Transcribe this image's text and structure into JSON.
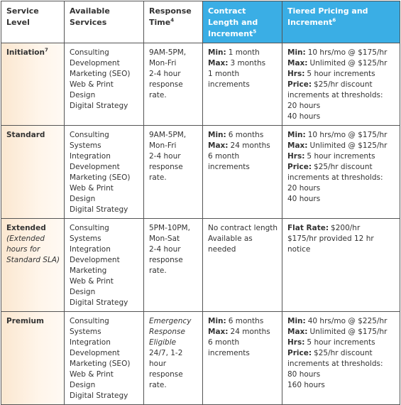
{
  "table": {
    "headers": [
      {
        "text": "Service Level"
      },
      {
        "text": "Available Services"
      },
      {
        "text": "Response Time",
        "sup": "4"
      },
      {
        "text": "Contract Length and Increment",
        "sup": "5",
        "highlight": true
      },
      {
        "text": "Tiered Pricing and Increment",
        "sup": "6",
        "highlight": true
      }
    ],
    "rows": [
      {
        "level": {
          "text": "Initiation",
          "sup": "7"
        },
        "services": [
          "Consulting",
          "Development",
          "Marketing (SEO)",
          "Web & Print Design",
          "Digital Strategy"
        ],
        "response": [
          {
            "text": "9AM-5PM, Mon-Fri"
          },
          {
            "text": "2-4 hour response rate."
          }
        ],
        "contract": [
          {
            "label": "Min:",
            "text": "1 month"
          },
          {
            "label": "Max:",
            "text": "3 months"
          },
          {
            "text": "1 month increments"
          }
        ],
        "pricing": [
          {
            "label": "Min:",
            "text": "10 hrs/mo @ $175/hr"
          },
          {
            "label": "Max:",
            "text": "Unlimited @ $125/hr"
          },
          {
            "label": "Hrs:",
            "text": "5 hour increments"
          },
          {
            "label": "Price:",
            "text": "$25/hr discount increments at thresholds:"
          },
          {
            "text": "20 hours"
          },
          {
            "text": "40 hours"
          }
        ]
      },
      {
        "level": {
          "text": "Standard"
        },
        "services": [
          "Consulting",
          "Systems Integration",
          "Development",
          "Marketing (SEO)",
          "Web & Print Design",
          "Digital Strategy"
        ],
        "response": [
          {
            "text": "9AM-5PM, Mon-Fri"
          },
          {
            "text": "2-4 hour response rate."
          }
        ],
        "contract": [
          {
            "label": "Min:",
            "text": "6 months"
          },
          {
            "label": "Max:",
            "text": "24 months"
          },
          {
            "text": "6 month increments"
          }
        ],
        "pricing": [
          {
            "label": "Min:",
            "text": "10 hrs/mo @ $175/hr"
          },
          {
            "label": "Max:",
            "text": "Unlimited @ $125/hr"
          },
          {
            "label": "Hrs:",
            "text": "5 hour increments"
          },
          {
            "label": "Price:",
            "text": "$25/hr discount increments at thresholds:"
          },
          {
            "text": "20 hours"
          },
          {
            "text": "40 hours"
          }
        ]
      },
      {
        "level": {
          "text": "Extended",
          "note": "(Extended hours for Standard SLA)"
        },
        "services": [
          "Consulting",
          "Systems Integration",
          "Development",
          "Marketing",
          "Web & Print Design",
          "Digital Strategy"
        ],
        "response": [
          {
            "text": "5PM-10PM, Mon-Sat"
          },
          {
            "text": "2-4 hour response rate."
          }
        ],
        "contract": [
          {
            "text": "No contract length"
          },
          {
            "text": "Available as needed"
          }
        ],
        "pricing": [
          {
            "label": "Flat Rate:",
            "text": "$200/hr"
          },
          {
            "text": "$175/hr provided 12 hr notice"
          }
        ]
      },
      {
        "level": {
          "text": "Premium"
        },
        "services": [
          "Consulting",
          "Systems Integration",
          "Development",
          "Marketing (SEO)",
          "Web & Print Design",
          "Digital Strategy"
        ],
        "response": [
          {
            "text": "Emergency Response Eligible",
            "italic": true
          },
          {
            "text": "24/7, 1-2 hour response rate."
          }
        ],
        "contract": [
          {
            "label": "Min:",
            "text": "6 months"
          },
          {
            "label": "Max:",
            "text": "24 months"
          },
          {
            "text": "6 month increments"
          }
        ],
        "pricing": [
          {
            "label": "Min:",
            "text": "40 hrs/mo @ $225/hr"
          },
          {
            "label": "Max:",
            "text": "Unlimited @ $175/hr"
          },
          {
            "label": "Hrs:",
            "text": "5 hour increments"
          },
          {
            "label": "Price:",
            "text": "$25/hr discount increments at thresholds:"
          },
          {
            "text": "80 hours"
          },
          {
            "text": "160 hours"
          }
        ]
      }
    ]
  }
}
